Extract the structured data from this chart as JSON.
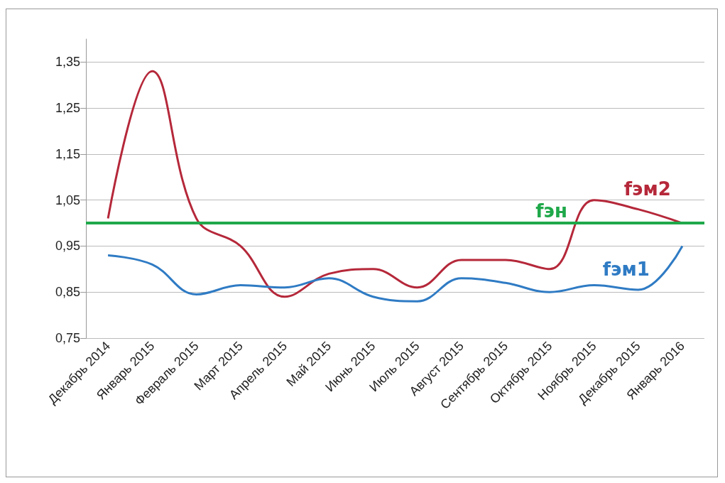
{
  "chart_data": {
    "type": "line",
    "categories": [
      "Декабрь 2014",
      "Январь 2015",
      "Февраль 2015",
      "Март 2015",
      "Апрель 2015",
      "Май 2015",
      "Июнь 2015",
      "Июль 2015",
      "Август 2015",
      "Сентябрь 2015",
      "Октябрь 2015",
      "Ноябрь 2015",
      "Декабрь 2015",
      "Январь 2016"
    ],
    "series": [
      {
        "name": "fэм2",
        "color": "#b5283a",
        "values": [
          1.01,
          1.33,
          1.01,
          0.95,
          0.84,
          0.89,
          0.9,
          0.86,
          0.92,
          0.92,
          0.9,
          1.05,
          1.03,
          1.0
        ]
      },
      {
        "name": "fэм1",
        "color": "#2f7bc4",
        "values": [
          0.93,
          0.91,
          0.845,
          0.865,
          0.86,
          0.88,
          0.84,
          0.83,
          0.88,
          0.87,
          0.85,
          0.865,
          0.855,
          0.95
        ]
      }
    ],
    "ref_lines": [
      {
        "axis": "y",
        "value": 1.0,
        "label": "fэн",
        "color": "#1fa84a"
      }
    ],
    "ylim": [
      0.75,
      1.4
    ],
    "yticks": [
      {
        "value": 0.75,
        "label": "0,75"
      },
      {
        "value": 0.85,
        "label": "0,85"
      },
      {
        "value": 0.95,
        "label": "0,95"
      },
      {
        "value": 1.05,
        "label": "1,05"
      },
      {
        "value": 1.15,
        "label": "1,15"
      },
      {
        "value": 1.25,
        "label": "1,25"
      },
      {
        "value": 1.35,
        "label": "1,35"
      }
    ],
    "grid": "y",
    "marker": "none",
    "line_style": "solid",
    "legend": false
  }
}
